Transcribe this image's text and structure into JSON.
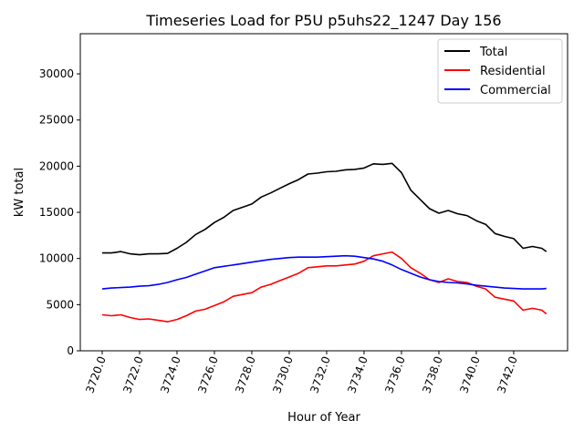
{
  "chart_data": {
    "type": "line",
    "title": "Timeseries Load for P5U p5uhs22_1247  Day 156",
    "xlabel": "Hour of Year",
    "ylabel": "kW total",
    "xlim": [
      3718.83,
      3744.88
    ],
    "ylim": [
      0,
      34350
    ],
    "grid": false,
    "legend_placement": "top-right",
    "x_ticks": [
      3720,
      3722,
      3724,
      3726,
      3728,
      3730,
      3732,
      3734,
      3736,
      3738,
      3740,
      3742
    ],
    "x_tick_labels": [
      "3720.0",
      "3722.0",
      "3724.0",
      "3726.0",
      "3728.0",
      "3730.0",
      "3732.0",
      "3734.0",
      "3736.0",
      "3738.0",
      "3740.0",
      "3742.0"
    ],
    "y_ticks": [
      0,
      5000,
      10000,
      15000,
      20000,
      25000,
      30000
    ],
    "y_tick_labels": [
      "0",
      "5000",
      "10000",
      "15000",
      "20000",
      "25000",
      "30000"
    ],
    "x": [
      3720,
      3720.5,
      3721,
      3721.5,
      3722,
      3722.5,
      3723,
      3723.5,
      3724,
      3724.5,
      3725,
      3725.5,
      3726,
      3726.5,
      3727,
      3727.5,
      3728,
      3728.5,
      3729,
      3729.5,
      3730,
      3730.5,
      3731,
      3731.5,
      3732,
      3732.5,
      3733,
      3733.5,
      3734,
      3734.5,
      3735,
      3735.5,
      3736,
      3736.5,
      3737,
      3737.5,
      3738,
      3738.5,
      3739,
      3739.5,
      3740,
      3740.5,
      3741,
      3741.5,
      3742,
      3742.5,
      3743,
      3743.5,
      3743.75
    ],
    "series": [
      {
        "name": "Total",
        "color": "#000000",
        "values": [
          10600,
          10600,
          10750,
          10500,
          10400,
          10500,
          10500,
          10550,
          11100,
          11750,
          12600,
          13150,
          13900,
          14450,
          15200,
          15550,
          15900,
          16650,
          17100,
          17600,
          18100,
          18550,
          19150,
          19250,
          19400,
          19450,
          19600,
          19650,
          19800,
          20250,
          20200,
          20300,
          19300,
          17400,
          16400,
          15400,
          14900,
          15200,
          14850,
          14650,
          14100,
          13700,
          12700,
          12400,
          12150,
          11100,
          11300,
          11100,
          10750
        ]
      },
      {
        "name": "Residential",
        "color": "#ff0000",
        "values": [
          3900,
          3800,
          3900,
          3600,
          3400,
          3450,
          3300,
          3150,
          3400,
          3800,
          4300,
          4500,
          4900,
          5300,
          5900,
          6100,
          6300,
          6900,
          7200,
          7600,
          8000,
          8400,
          9000,
          9100,
          9200,
          9200,
          9300,
          9400,
          9700,
          10300,
          10500,
          10700,
          10000,
          9000,
          8400,
          7700,
          7400,
          7800,
          7500,
          7400,
          7000,
          6700,
          5800,
          5600,
          5400,
          4400,
          4600,
          4400,
          4000
        ]
      },
      {
        "name": "Commercial",
        "color": "#0000ff",
        "values": [
          6700,
          6800,
          6850,
          6900,
          7000,
          7050,
          7200,
          7400,
          7700,
          7950,
          8300,
          8650,
          9000,
          9150,
          9300,
          9450,
          9600,
          9750,
          9900,
          10000,
          10100,
          10150,
          10150,
          10150,
          10200,
          10250,
          10300,
          10250,
          10100,
          9950,
          9700,
          9300,
          8800,
          8400,
          8000,
          7700,
          7500,
          7400,
          7350,
          7250,
          7100,
          7000,
          6900,
          6800,
          6750,
          6700,
          6700,
          6700,
          6750
        ]
      }
    ]
  }
}
